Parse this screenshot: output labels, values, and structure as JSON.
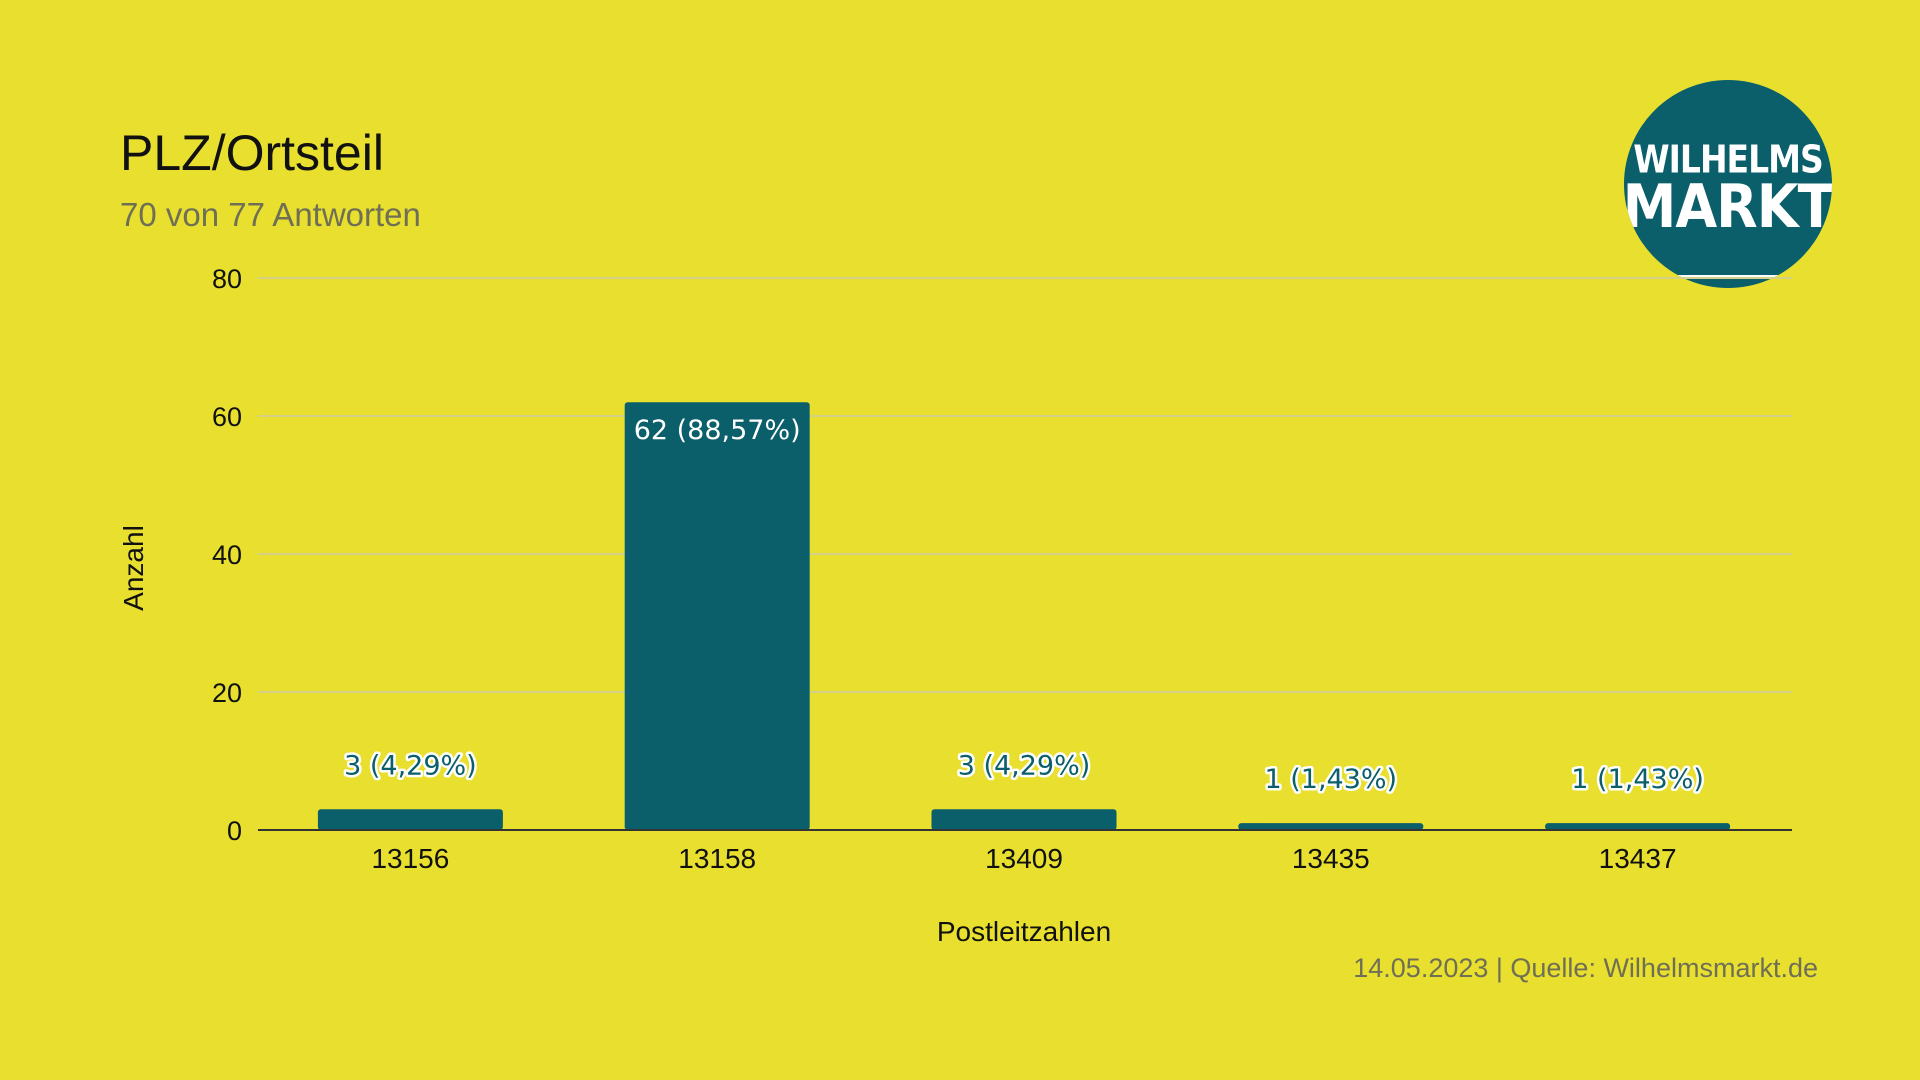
{
  "header": {
    "title": "PLZ/Ortsteil",
    "subtitle": "70 von 77 Antworten"
  },
  "logo": {
    "line1": "WILHELMS",
    "line2": "MARKT"
  },
  "footer": {
    "text": "14.05.2023 | Quelle: Wilhelmsmarkt.de"
  },
  "colors": {
    "background": "#e8df2f",
    "bar": "#0a5f6b",
    "gridline": "#d4d08a",
    "axis": "#333333"
  },
  "chart_data": {
    "type": "bar",
    "title": "PLZ/Ortsteil",
    "subtitle": "70 von 77 Antworten",
    "xlabel": "Postleitzahlen",
    "ylabel": "Anzahl",
    "categories": [
      "13156",
      "13158",
      "13409",
      "13435",
      "13437"
    ],
    "values": [
      3,
      62,
      3,
      1,
      1
    ],
    "data_labels": [
      "3 (4,29%)",
      "62 (88,57%)",
      "3 (4,29%)",
      "1 (1,43%)",
      "1 (1,43%)"
    ],
    "ylim": [
      0,
      80
    ],
    "yticks": [
      0,
      20,
      40,
      60,
      80
    ],
    "grid": true,
    "legend": "none"
  }
}
